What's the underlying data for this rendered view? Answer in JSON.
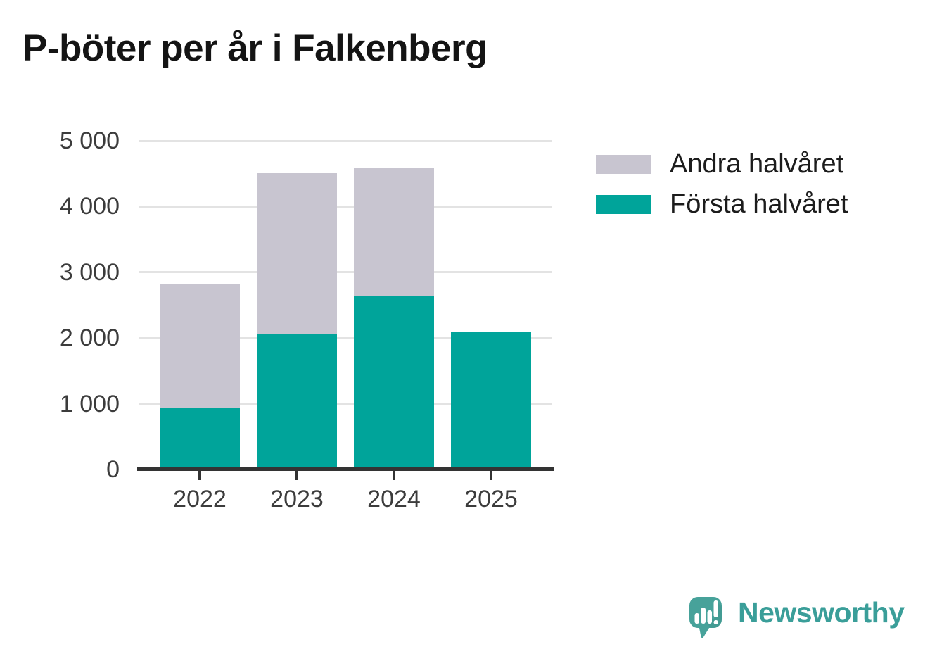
{
  "title": "P-böter per år i Falkenberg",
  "chart_data": {
    "type": "bar",
    "stacked": true,
    "categories": [
      "2022",
      "2023",
      "2024",
      "2025"
    ],
    "series": [
      {
        "name": "Första halvåret",
        "color": "#00a49a",
        "values": [
          940,
          2060,
          2640,
          2090
        ]
      },
      {
        "name": "Andra halvåret",
        "color": "#c8c5d0",
        "values": [
          1890,
          2450,
          1950,
          0
        ]
      }
    ],
    "totals": [
      2830,
      4510,
      4590,
      2090
    ],
    "xlabel": "",
    "ylabel": "",
    "ylim": [
      0,
      5000
    ],
    "yticks": [
      0,
      1000,
      2000,
      3000,
      4000,
      5000
    ],
    "ytick_labels": [
      "0",
      "1 000",
      "2 000",
      "3 000",
      "4 000",
      "5 000"
    ],
    "grid": true,
    "legend_position": "top-right"
  },
  "legend": {
    "items": [
      {
        "label": "Andra halvåret",
        "color": "#c8c5d0"
      },
      {
        "label": "Första halvåret",
        "color": "#00a49a"
      }
    ]
  },
  "logo": {
    "text": "Newsworthy",
    "icon": "newsworthy-speech-bubble-chart-icon",
    "text_color": "#3a9e99",
    "icon_color": "#47a29a"
  },
  "colors": {
    "background": "#ffffff",
    "bar_teal": "#00a49a",
    "bar_gray": "#c8c5d0",
    "gridline": "#e3e3e3",
    "axis": "#333333",
    "tick_label": "#3c3c3c",
    "title": "#141414"
  }
}
